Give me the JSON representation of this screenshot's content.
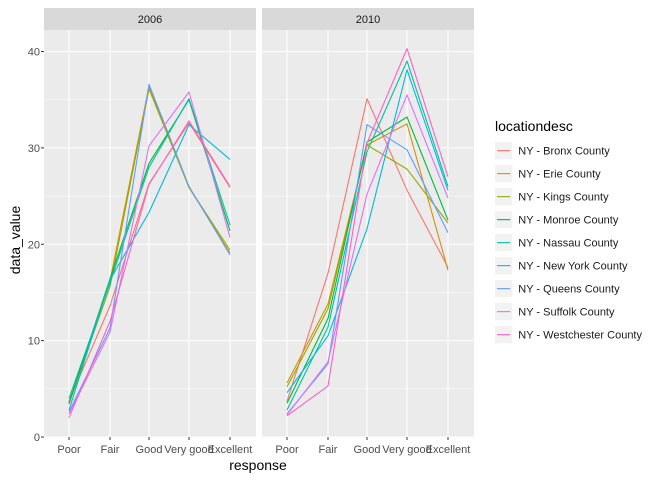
{
  "chart_data": {
    "type": "line",
    "xlabel": "response",
    "ylabel": "data_value",
    "ylim": [
      0,
      42
    ],
    "y_ticks": [
      0,
      10,
      20,
      30,
      40
    ],
    "categories": [
      "Poor",
      "Fair",
      "Good",
      "Very good",
      "Excellent"
    ],
    "grid": "on",
    "legend_position": "right",
    "legend_title": "locationdesc",
    "series_names": [
      "NY - Bronx County",
      "NY - Erie County",
      "NY - Kings County",
      "NY - Monroe County",
      "NY - Nassau County",
      "NY - New York County",
      "NY - Queens County",
      "NY - Suffolk County",
      "NY - Westchester County"
    ],
    "series_colors": [
      "#F8766D",
      "#D39200",
      "#93AA00",
      "#00BA38",
      "#00C19F",
      "#00B9E3",
      "#619CFF",
      "#DB72FB",
      "#FF61C3"
    ],
    "panels": [
      {
        "label": "2006",
        "series": [
          {
            "name": "NY - Bronx County",
            "values": [
              3.7,
              13.6,
              26.3,
              32.6,
              25.9
            ]
          },
          {
            "name": "NY - Erie County",
            "values": [
              3.4,
              16.2,
              36.4,
              25.9,
              19.1
            ]
          },
          {
            "name": "NY - Kings County",
            "values": [
              3.6,
              15.6,
              36.1,
              25.9,
              19.4
            ]
          },
          {
            "name": "NY - Monroe County",
            "values": [
              3.5,
              16.4,
              28.4,
              35.0,
              21.4
            ]
          },
          {
            "name": "NY - Nassau County",
            "values": [
              4.0,
              16.0,
              28.0,
              35.1,
              22.0
            ]
          },
          {
            "name": "NY - New York County",
            "values": [
              2.8,
              16.3,
              23.3,
              32.4,
              28.8
            ]
          },
          {
            "name": "NY - Queens County",
            "values": [
              2.6,
              11.3,
              36.6,
              26.0,
              18.9
            ]
          },
          {
            "name": "NY - Suffolk County",
            "values": [
              2.4,
              10.9,
              30.2,
              35.8,
              20.7
            ]
          },
          {
            "name": "NY - Westchester County",
            "values": [
              2.0,
              12.0,
              26.2,
              32.8,
              26.0
            ]
          }
        ]
      },
      {
        "label": "2010",
        "series": [
          {
            "name": "NY - Bronx County",
            "values": [
              3.7,
              17.0,
              35.1,
              25.6,
              17.6
            ]
          },
          {
            "name": "NY - Erie County",
            "values": [
              5.6,
              13.8,
              30.3,
              32.5,
              17.3
            ]
          },
          {
            "name": "NY - Kings County",
            "values": [
              5.2,
              13.3,
              30.3,
              27.8,
              22.2
            ]
          },
          {
            "name": "NY - Monroe County",
            "values": [
              3.5,
              12.3,
              30.6,
              33.2,
              22.5
            ]
          },
          {
            "name": "NY - Nassau County",
            "values": [
              2.8,
              11.4,
              29.6,
              39.0,
              26.0
            ]
          },
          {
            "name": "NY - New York County",
            "values": [
              4.6,
              10.5,
              21.6,
              38.1,
              25.6
            ]
          },
          {
            "name": "NY - Queens County",
            "values": [
              2.4,
              7.6,
              32.4,
              29.8,
              21.2
            ]
          },
          {
            "name": "NY - Suffolk County",
            "values": [
              2.3,
              7.8,
              25.2,
              35.5,
              24.8
            ]
          },
          {
            "name": "NY - Westchester County",
            "values": [
              2.2,
              5.3,
              30.5,
              40.3,
              27.0
            ]
          }
        ]
      }
    ]
  }
}
